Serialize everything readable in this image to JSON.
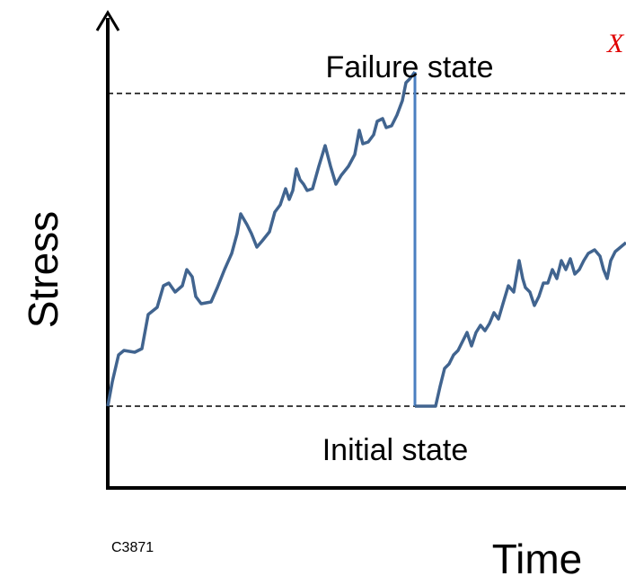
{
  "labels": {
    "failure": "Failure state",
    "initial": "Initial state",
    "y_axis": "Stress",
    "x_axis": "Time",
    "code": "C3871",
    "marker": "X"
  }
}
